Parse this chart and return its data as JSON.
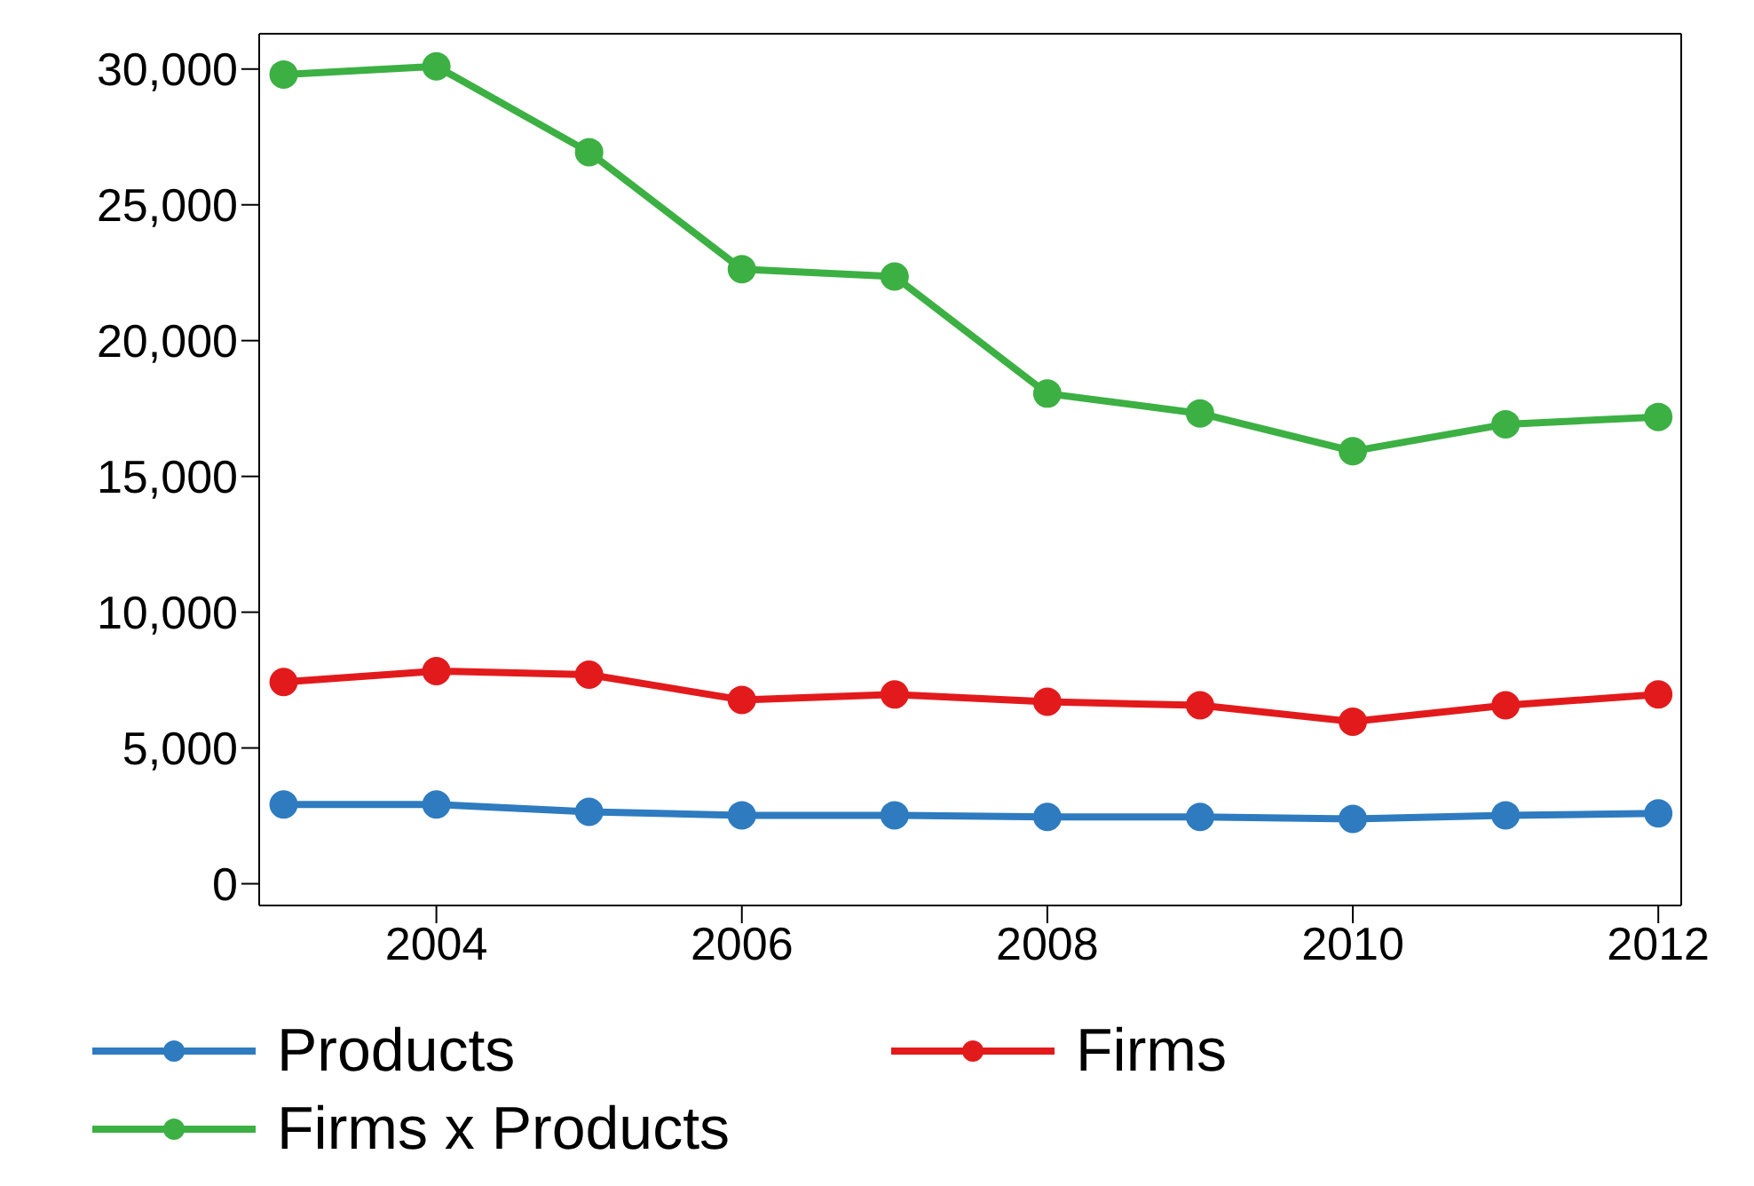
{
  "chart_data": {
    "type": "line",
    "x": [
      2003,
      2004,
      2005,
      2006,
      2007,
      2008,
      2009,
      2010,
      2011,
      2012
    ],
    "series": [
      {
        "name": "Products",
        "color": "#2e7bc0",
        "values": [
          2920,
          2920,
          2650,
          2520,
          2520,
          2460,
          2460,
          2390,
          2520,
          2590
        ]
      },
      {
        "name": "Firms",
        "color": "#e31a1c",
        "values": [
          7430,
          7830,
          7700,
          6770,
          6970,
          6700,
          6570,
          5970,
          6570,
          6970
        ]
      },
      {
        "name": "Firms x Products",
        "color": "#3cb043",
        "values": [
          29800,
          30100,
          26940,
          22630,
          22360,
          18050,
          17320,
          15930,
          16920,
          17190
        ]
      }
    ],
    "xlim": [
      2002.84,
      2012.15
    ],
    "xticks": [
      2004,
      2006,
      2008,
      2010,
      2012
    ],
    "ylim": [
      -800,
      31300
    ],
    "yticks": [
      0,
      {
        "value": 5000,
        "label": "5,000"
      },
      {
        "value": 10000,
        "label": "10,000"
      },
      {
        "value": 15000,
        "label": "15,000"
      },
      {
        "value": 20000,
        "label": "20,000"
      },
      {
        "value": 25000,
        "label": "25,000"
      },
      {
        "value": 30000,
        "label": "30,000"
      }
    ],
    "grid": false,
    "legend": "bottom",
    "marker": "circle",
    "line_style": "solid"
  }
}
